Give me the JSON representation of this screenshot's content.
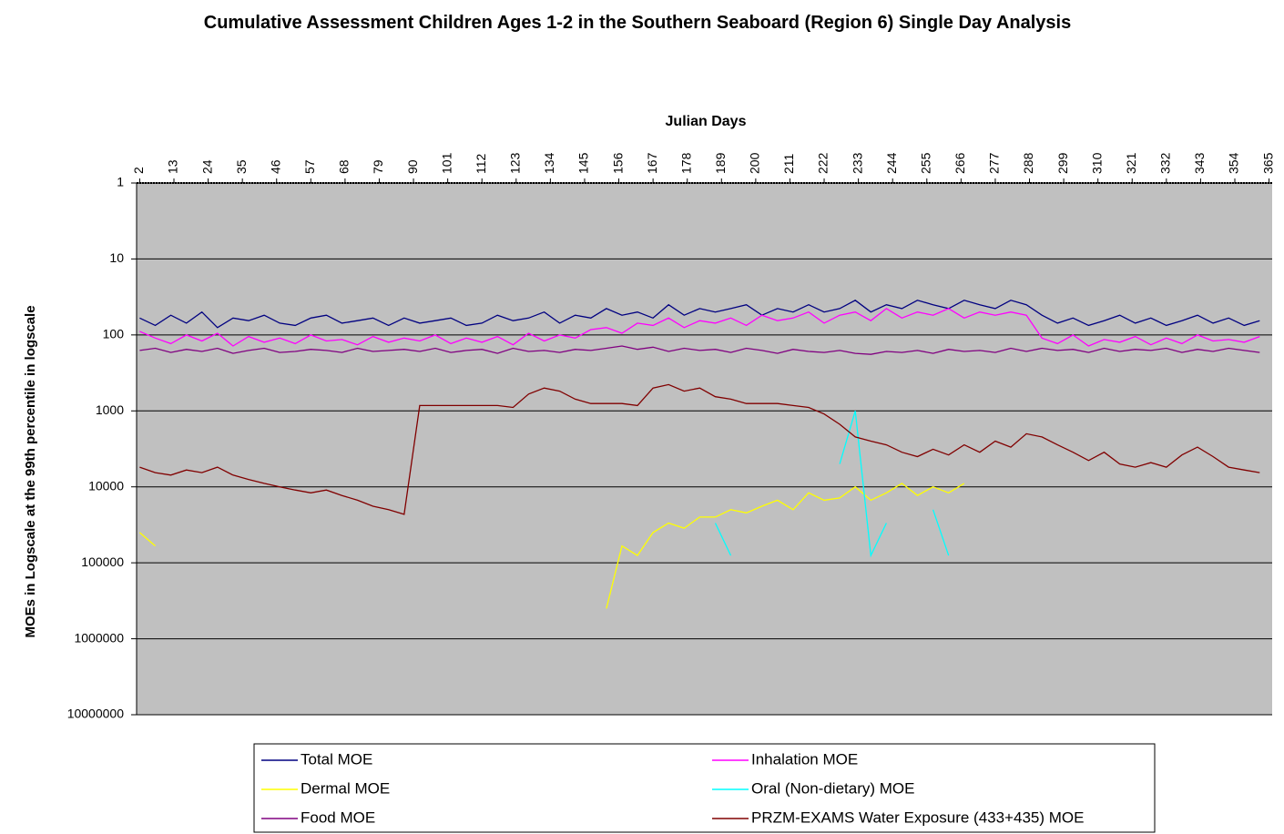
{
  "chart_data": {
    "type": "line",
    "title": "Cumulative Assessment Children Ages 1-2 in the Southern Seaboard (Region 6) Single Day Analysis",
    "x_label": "Julian Days",
    "y_label": "MOEs in Logscale at the 99th percentile in logscale",
    "log_scale": true,
    "y_inverted": true,
    "x_axis_position": "top",
    "grid": true,
    "legend_position": "bottom",
    "xlim": [
      1,
      366
    ],
    "xticks": [
      2,
      13,
      24,
      35,
      46,
      57,
      68,
      79,
      90,
      101,
      112,
      123,
      134,
      145,
      156,
      167,
      178,
      189,
      200,
      211,
      222,
      233,
      244,
      255,
      266,
      277,
      288,
      299,
      310,
      321,
      332,
      343,
      354,
      365
    ],
    "ylim": [
      1,
      10000000
    ],
    "yticks": [
      1,
      10,
      100,
      1000,
      10000,
      100000,
      1000000,
      10000000
    ],
    "x": [
      2,
      7,
      12,
      17,
      22,
      27,
      32,
      37,
      42,
      47,
      52,
      57,
      62,
      67,
      72,
      77,
      82,
      87,
      92,
      97,
      102,
      107,
      112,
      117,
      122,
      127,
      132,
      137,
      142,
      147,
      152,
      157,
      162,
      167,
      172,
      177,
      182,
      187,
      192,
      197,
      202,
      207,
      212,
      217,
      222,
      227,
      232,
      237,
      242,
      247,
      252,
      257,
      262,
      267,
      272,
      277,
      282,
      287,
      292,
      297,
      302,
      307,
      312,
      317,
      322,
      327,
      332,
      337,
      342,
      347,
      352,
      357,
      362
    ],
    "series": [
      {
        "name": "Total MOE",
        "color": "#000080",
        "values": [
          60,
          75,
          55,
          70,
          50,
          80,
          60,
          65,
          55,
          70,
          75,
          60,
          55,
          70,
          65,
          60,
          75,
          60,
          70,
          65,
          60,
          75,
          70,
          55,
          65,
          60,
          50,
          70,
          55,
          60,
          45,
          55,
          50,
          60,
          40,
          55,
          45,
          50,
          45,
          40,
          55,
          45,
          50,
          40,
          50,
          45,
          35,
          50,
          40,
          45,
          35,
          40,
          45,
          35,
          40,
          45,
          35,
          40,
          55,
          70,
          60,
          75,
          65,
          55,
          70,
          60,
          75,
          65,
          55,
          70,
          60,
          75,
          65
        ]
      },
      {
        "name": "Inhalation MOE",
        "color": "#ff00ff",
        "values": [
          90,
          110,
          130,
          100,
          120,
          95,
          140,
          105,
          125,
          110,
          130,
          100,
          120,
          115,
          135,
          105,
          125,
          110,
          120,
          100,
          130,
          110,
          125,
          105,
          135,
          95,
          120,
          100,
          110,
          85,
          80,
          95,
          70,
          75,
          60,
          80,
          65,
          70,
          60,
          75,
          55,
          65,
          60,
          50,
          70,
          55,
          50,
          65,
          45,
          60,
          50,
          55,
          45,
          60,
          50,
          55,
          50,
          55,
          110,
          130,
          100,
          140,
          115,
          125,
          105,
          135,
          110,
          130,
          100,
          120,
          115,
          125,
          105
        ]
      },
      {
        "name": "Dermal MOE",
        "color": "#ffff00",
        "values": [
          40000,
          60000,
          null,
          null,
          null,
          null,
          null,
          null,
          null,
          null,
          null,
          null,
          null,
          null,
          null,
          null,
          null,
          null,
          null,
          null,
          null,
          null,
          null,
          null,
          null,
          null,
          null,
          null,
          null,
          null,
          400000,
          60000,
          80000,
          40000,
          30000,
          35000,
          25000,
          25000,
          20000,
          22000,
          18000,
          15000,
          20000,
          12000,
          15000,
          14000,
          10000,
          15000,
          12000,
          9000,
          13000,
          10000,
          12000,
          9000,
          null,
          null,
          null,
          null,
          null,
          null,
          null,
          null,
          null,
          null,
          null,
          null,
          null,
          null,
          null,
          null,
          null,
          null,
          null
        ]
      },
      {
        "name": "Oral (Non-dietary) MOE",
        "color": "#00ffff",
        "values": [
          null,
          null,
          null,
          null,
          null,
          null,
          null,
          null,
          null,
          null,
          null,
          null,
          null,
          null,
          null,
          null,
          null,
          null,
          null,
          null,
          null,
          null,
          null,
          null,
          null,
          null,
          null,
          null,
          null,
          null,
          null,
          null,
          null,
          null,
          null,
          null,
          null,
          30000,
          80000,
          null,
          null,
          null,
          null,
          null,
          null,
          5000,
          1000,
          80000,
          30000,
          null,
          null,
          20000,
          80000,
          null,
          null,
          null,
          null,
          null,
          null,
          null,
          null,
          null,
          null,
          null,
          null,
          null,
          null,
          null,
          null,
          null,
          null,
          null,
          null
        ]
      },
      {
        "name": "Food MOE",
        "color": "#800080",
        "values": [
          160,
          150,
          170,
          155,
          165,
          150,
          175,
          160,
          150,
          170,
          165,
          155,
          160,
          170,
          150,
          165,
          160,
          155,
          165,
          150,
          170,
          160,
          155,
          175,
          150,
          165,
          160,
          170,
          155,
          160,
          150,
          140,
          155,
          145,
          165,
          150,
          160,
          155,
          170,
          150,
          160,
          175,
          155,
          165,
          170,
          160,
          175,
          180,
          165,
          170,
          160,
          175,
          155,
          165,
          160,
          170,
          150,
          165,
          150,
          160,
          155,
          170,
          150,
          165,
          155,
          160,
          150,
          170,
          155,
          165,
          150,
          160,
          170
        ]
      },
      {
        "name": "PRZM-EXAMS Water Exposure (433+435) MOE",
        "color": "#800000",
        "values": [
          5500,
          6500,
          7000,
          6000,
          6500,
          5500,
          7000,
          8000,
          9000,
          10000,
          11000,
          12000,
          11000,
          13000,
          15000,
          18000,
          20000,
          23000,
          850,
          850,
          850,
          850,
          850,
          850,
          900,
          600,
          500,
          550,
          700,
          800,
          800,
          800,
          850,
          500,
          450,
          550,
          500,
          650,
          700,
          800,
          800,
          800,
          850,
          900,
          1100,
          1500,
          2200,
          2500,
          2800,
          3500,
          4000,
          3200,
          3800,
          2800,
          3500,
          2500,
          3000,
          2000,
          2200,
          2800,
          3500,
          4500,
          3500,
          5000,
          5500,
          4800,
          5500,
          3800,
          3000,
          4000,
          5500,
          6000,
          6500
        ]
      }
    ]
  }
}
